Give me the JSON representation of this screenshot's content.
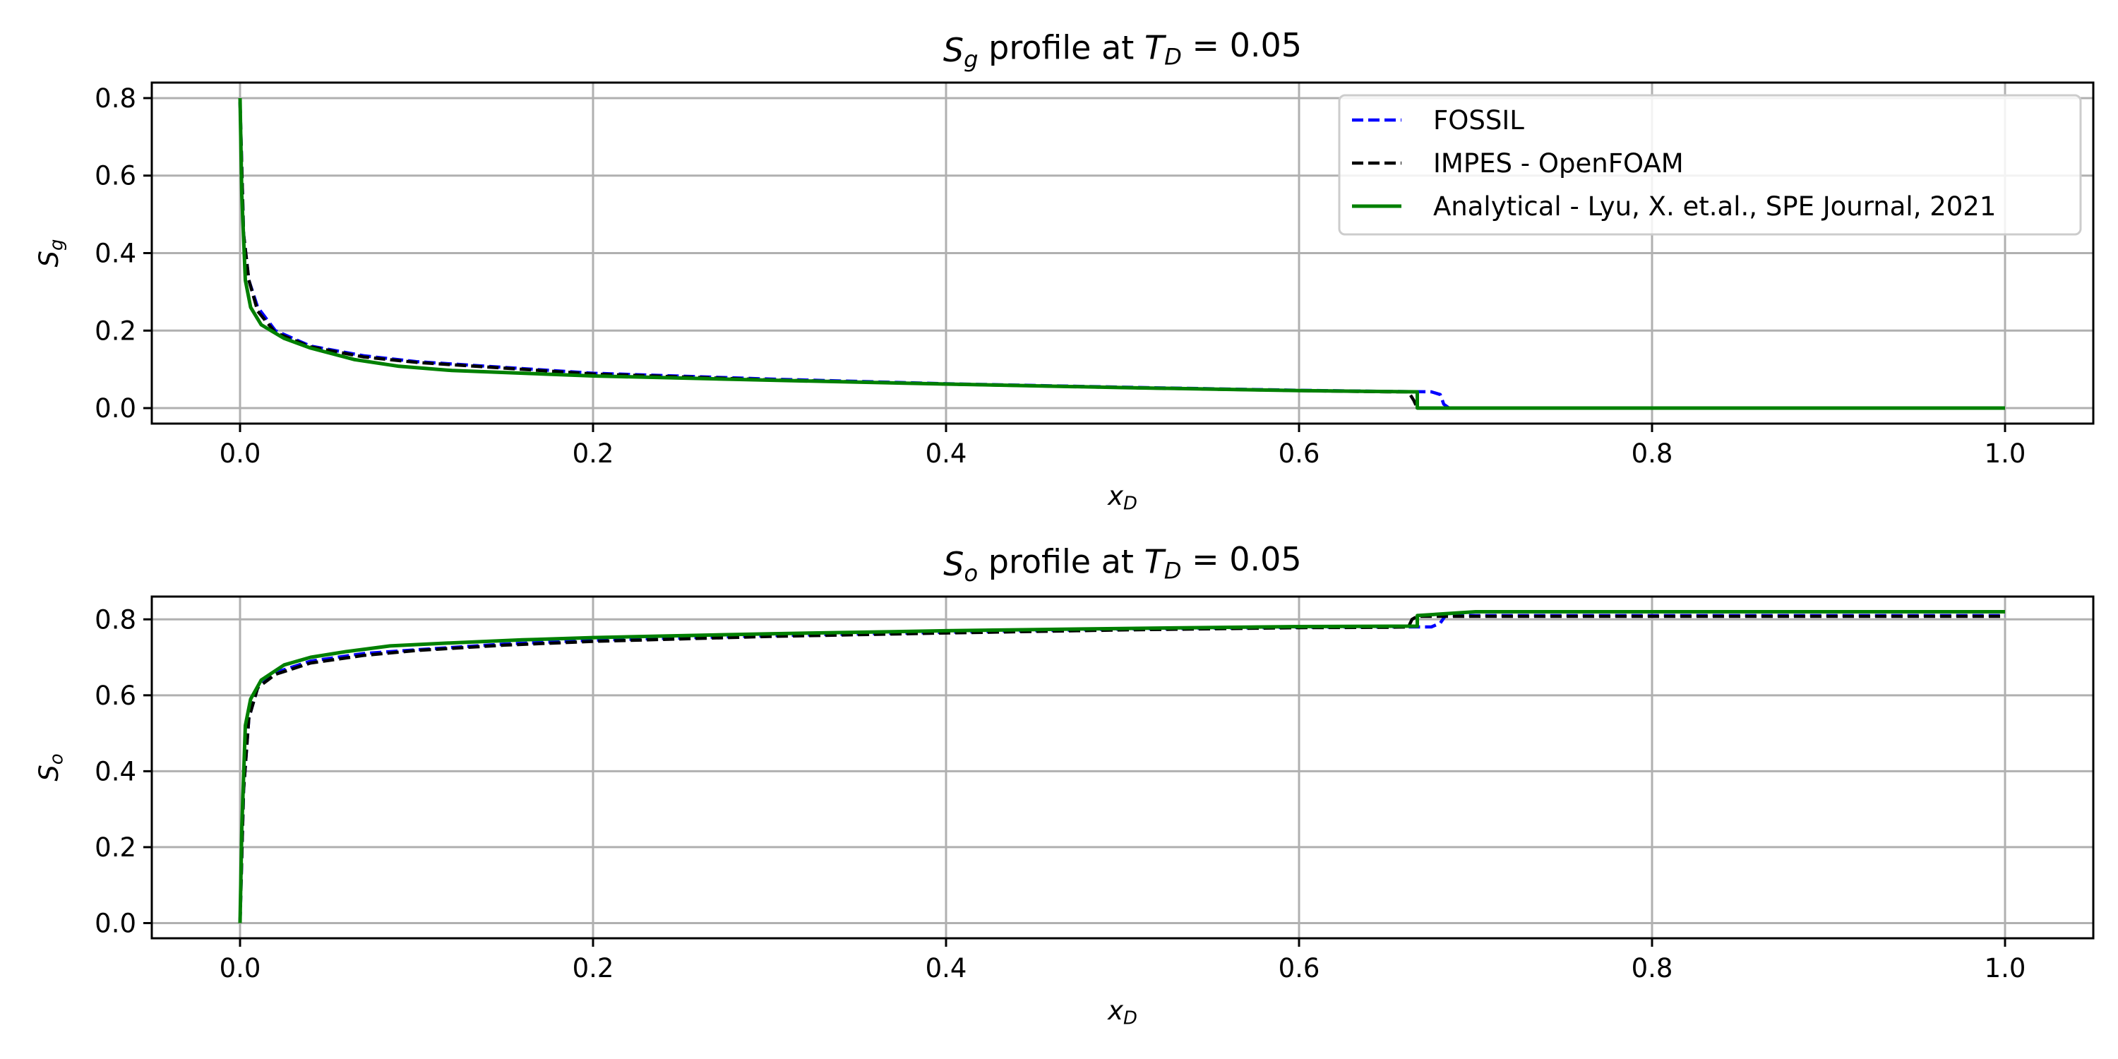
{
  "chart_data": [
    {
      "type": "line",
      "title": "S_g profile at T_D = 0.05",
      "title_parts": {
        "main": "S",
        "sub": "g",
        "mid": " profile at ",
        "main2": "T",
        "sub2": "D",
        "tail": " = 0.05"
      },
      "xlabel": "x_D",
      "xlabel_parts": {
        "main": "x",
        "sub": "D"
      },
      "ylabel": "S_g",
      "ylabel_parts": {
        "main": "S",
        "sub": "g"
      },
      "xlim": [
        -0.05,
        1.05
      ],
      "ylim": [
        -0.04,
        0.84
      ],
      "xticks": [
        0.0,
        0.2,
        0.4,
        0.6,
        0.8,
        1.0
      ],
      "xtick_labels": [
        "0.0",
        "0.2",
        "0.4",
        "0.6",
        "0.8",
        "1.0"
      ],
      "yticks": [
        0.0,
        0.2,
        0.4,
        0.6,
        0.8
      ],
      "ytick_labels": [
        "0.0",
        "0.2",
        "0.4",
        "0.6",
        "0.8"
      ],
      "grid": true,
      "legend_position": "top-right",
      "series": [
        {
          "name": "FOSSIL",
          "color": "#0000ff",
          "style": "dashed",
          "x": [
            0.0,
            0.002,
            0.005,
            0.01,
            0.02,
            0.04,
            0.07,
            0.1,
            0.15,
            0.2,
            0.3,
            0.4,
            0.5,
            0.6,
            0.65,
            0.675,
            0.68,
            0.682,
            0.685,
            0.7,
            0.8,
            0.9,
            1.0
          ],
          "y": [
            0.79,
            0.45,
            0.33,
            0.26,
            0.2,
            0.16,
            0.135,
            0.12,
            0.105,
            0.09,
            0.075,
            0.063,
            0.054,
            0.046,
            0.043,
            0.042,
            0.035,
            0.01,
            0.0,
            0.0,
            0.0,
            0.0,
            0.0
          ]
        },
        {
          "name": "IMPES - OpenFOAM",
          "color": "#000000",
          "style": "dashed",
          "x": [
            0.0,
            0.002,
            0.005,
            0.01,
            0.02,
            0.04,
            0.07,
            0.1,
            0.15,
            0.2,
            0.3,
            0.4,
            0.5,
            0.6,
            0.65,
            0.662,
            0.665,
            0.667,
            0.67,
            0.7,
            0.8,
            0.9,
            1.0
          ],
          "y": [
            0.79,
            0.45,
            0.33,
            0.25,
            0.195,
            0.158,
            0.132,
            0.118,
            0.103,
            0.088,
            0.073,
            0.062,
            0.053,
            0.045,
            0.042,
            0.042,
            0.02,
            0.0,
            0.0,
            0.0,
            0.0,
            0.0,
            0.0
          ]
        },
        {
          "name": "Analytical - Lyu, X. et.al., SPE Journal, 2021",
          "color": "#008000",
          "style": "solid",
          "x": [
            0.0,
            0.001,
            0.003,
            0.006,
            0.012,
            0.025,
            0.04,
            0.065,
            0.09,
            0.12,
            0.16,
            0.2,
            0.3,
            0.4,
            0.5,
            0.6,
            0.667,
            0.667,
            0.7,
            0.8,
            0.9,
            1.0
          ],
          "y": [
            0.8,
            0.55,
            0.33,
            0.26,
            0.215,
            0.18,
            0.155,
            0.125,
            0.108,
            0.097,
            0.09,
            0.083,
            0.072,
            0.062,
            0.053,
            0.045,
            0.042,
            0.0,
            0.0,
            0.0,
            0.0,
            0.0
          ]
        }
      ]
    },
    {
      "type": "line",
      "title": "S_o profile at T_D = 0.05",
      "title_parts": {
        "main": "S",
        "sub": "o",
        "mid": " profile at ",
        "main2": "T",
        "sub2": "D",
        "tail": " = 0.05"
      },
      "xlabel": "x_D",
      "xlabel_parts": {
        "main": "x",
        "sub": "D"
      },
      "ylabel": "S_o",
      "ylabel_parts": {
        "main": "S",
        "sub": "o"
      },
      "xlim": [
        -0.05,
        1.05
      ],
      "ylim": [
        -0.04,
        0.86
      ],
      "xticks": [
        0.0,
        0.2,
        0.4,
        0.6,
        0.8,
        1.0
      ],
      "xtick_labels": [
        "0.0",
        "0.2",
        "0.4",
        "0.6",
        "0.8",
        "1.0"
      ],
      "yticks": [
        0.0,
        0.2,
        0.4,
        0.6,
        0.8
      ],
      "ytick_labels": [
        "0.0",
        "0.2",
        "0.4",
        "0.6",
        "0.8"
      ],
      "grid": true,
      "series": [
        {
          "name": "FOSSIL",
          "color": "#0000ff",
          "style": "dashed",
          "x": [
            0.0,
            0.002,
            0.005,
            0.01,
            0.02,
            0.04,
            0.07,
            0.1,
            0.15,
            0.2,
            0.3,
            0.4,
            0.5,
            0.6,
            0.65,
            0.675,
            0.68,
            0.683,
            0.686,
            0.7,
            0.8,
            0.9,
            1.0
          ],
          "y": [
            0.0,
            0.35,
            0.54,
            0.62,
            0.66,
            0.69,
            0.71,
            0.72,
            0.735,
            0.745,
            0.757,
            0.766,
            0.774,
            0.779,
            0.78,
            0.78,
            0.79,
            0.81,
            0.81,
            0.81,
            0.81,
            0.81,
            0.81
          ]
        },
        {
          "name": "IMPES - OpenFOAM",
          "color": "#000000",
          "style": "dashed",
          "x": [
            0.0,
            0.002,
            0.005,
            0.01,
            0.02,
            0.04,
            0.07,
            0.1,
            0.15,
            0.2,
            0.3,
            0.4,
            0.5,
            0.6,
            0.65,
            0.662,
            0.664,
            0.667,
            0.67,
            0.7,
            0.8,
            0.9,
            1.0
          ],
          "y": [
            0.0,
            0.35,
            0.54,
            0.62,
            0.655,
            0.685,
            0.705,
            0.718,
            0.732,
            0.742,
            0.755,
            0.764,
            0.772,
            0.778,
            0.779,
            0.78,
            0.8,
            0.808,
            0.808,
            0.808,
            0.808,
            0.808,
            0.808
          ]
        },
        {
          "name": "Analytical - Lyu, X. et.al., SPE Journal, 2021",
          "color": "#008000",
          "style": "solid",
          "x": [
            0.0,
            0.001,
            0.003,
            0.006,
            0.012,
            0.025,
            0.04,
            0.06,
            0.085,
            0.12,
            0.16,
            0.2,
            0.3,
            0.4,
            0.5,
            0.6,
            0.667,
            0.667,
            0.7,
            0.8,
            0.9,
            1.0
          ],
          "y": [
            0.0,
            0.25,
            0.52,
            0.59,
            0.64,
            0.68,
            0.7,
            0.715,
            0.73,
            0.738,
            0.746,
            0.752,
            0.762,
            0.77,
            0.776,
            0.781,
            0.782,
            0.81,
            0.82,
            0.82,
            0.82,
            0.82
          ]
        }
      ]
    }
  ]
}
